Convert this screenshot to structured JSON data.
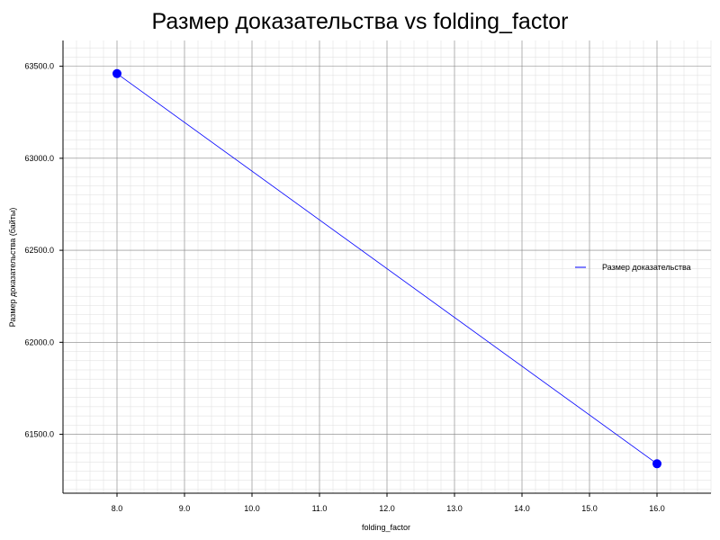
{
  "chart_data": {
    "type": "line",
    "title": "Размер доказательства vs folding_factor",
    "xlabel": "folding_factor",
    "ylabel": "Размер доказательства (байты)",
    "x": [
      8.0,
      16.0
    ],
    "series": [
      {
        "name": "Размер доказательства",
        "values": [
          63460,
          61340
        ],
        "color": "#0000ff"
      }
    ],
    "xlim": [
      7.2,
      16.8
    ],
    "ylim": [
      61180,
      63640
    ],
    "xticks": [
      8.0,
      9.0,
      10.0,
      11.0,
      12.0,
      13.0,
      14.0,
      15.0,
      16.0
    ],
    "xtick_labels": [
      "8.0",
      "9.0",
      "10.0",
      "11.0",
      "12.0",
      "13.0",
      "14.0",
      "15.0",
      "16.0"
    ],
    "yticks": [
      61500,
      62000,
      62500,
      63000,
      63500
    ],
    "ytick_labels": [
      "61500.0",
      "62000.0",
      "62500.0",
      "63000.0",
      "63500.0"
    ],
    "grid": true,
    "minor_grid": true,
    "legend_position": "right",
    "colors": {
      "line": "#0000ff",
      "marker": "#0000ff",
      "major_grid": "#888888",
      "minor_grid": "#dddddd"
    }
  }
}
